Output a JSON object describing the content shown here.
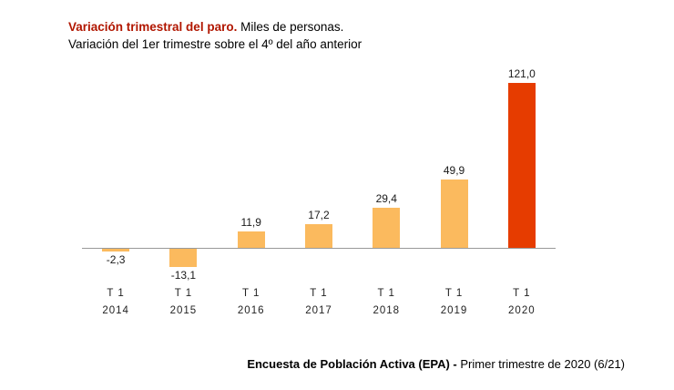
{
  "header": {
    "title_bold": "Variación trimestral del paro.",
    "title_rest": " Miles de personas.",
    "subtitle": "Variación del 1er trimestre sobre el 4º del año anterior"
  },
  "footer": {
    "source_bold": "Encuesta de Población Activa (EPA) - ",
    "source_rest": "Primer trimestre de 2020 (6/21)"
  },
  "colors": {
    "title_accent": "#b11600",
    "bar": "#fbba5e",
    "bar_highlight": "#e63c00",
    "axis": "#999999"
  },
  "chart_data": {
    "type": "bar",
    "title": "Variación trimestral del paro. Miles de personas.",
    "subtitle": "Variación del 1er trimestre sobre el 4º del año anterior",
    "categories": [
      "T 1 2014",
      "T 1 2015",
      "T 1 2016",
      "T 1 2017",
      "T 1 2018",
      "T 1 2019",
      "T 1 2020"
    ],
    "values": [
      -2.3,
      -13.1,
      11.9,
      17.2,
      29.4,
      49.9,
      121.0
    ],
    "value_labels": [
      "-2,3",
      "-13,1",
      "11,9",
      "17,2",
      "29,4",
      "49,9",
      "121,0"
    ],
    "highlight_index": 6,
    "xlabel": "",
    "ylabel": "",
    "ylim": [
      -20,
      130
    ],
    "grid": false,
    "legend": "none",
    "bars": [
      {
        "quarter": "T 1",
        "year": "2014",
        "value": -2.3,
        "label": "-2,3",
        "highlight": false
      },
      {
        "quarter": "T 1",
        "year": "2015",
        "value": -13.1,
        "label": "-13,1",
        "highlight": false
      },
      {
        "quarter": "T 1",
        "year": "2016",
        "value": 11.9,
        "label": "11,9",
        "highlight": false
      },
      {
        "quarter": "T 1",
        "year": "2017",
        "value": 17.2,
        "label": "17,2",
        "highlight": false
      },
      {
        "quarter": "T 1",
        "year": "2018",
        "value": 29.4,
        "label": "29,4",
        "highlight": false
      },
      {
        "quarter": "T 1",
        "year": "2019",
        "value": 49.9,
        "label": "49,9",
        "highlight": false
      },
      {
        "quarter": "T 1",
        "year": "2020",
        "value": 121.0,
        "label": "121,0",
        "highlight": true
      }
    ]
  }
}
